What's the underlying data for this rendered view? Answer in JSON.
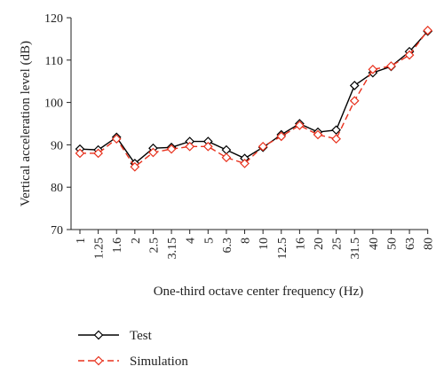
{
  "chart_data": {
    "type": "line",
    "title": "",
    "xlabel": "One-third octave center frequency (Hz)",
    "ylabel": "Vertical acceleration level (dB)",
    "ylim": [
      70,
      120
    ],
    "yticks": [
      "70",
      "80",
      "90",
      "100",
      "110",
      "120"
    ],
    "grid": false,
    "legend_position": "bottom-left",
    "categories": [
      "1",
      "1.25",
      "1.6",
      "2",
      "2.5",
      "3.15",
      "4",
      "5",
      "6.3",
      "8",
      "10",
      "12.5",
      "16",
      "20",
      "25",
      "31.5",
      "40",
      "50",
      "63",
      "80"
    ],
    "series": [
      {
        "name": "Test",
        "color": "#000000",
        "line_style": "solid",
        "marker": "diamond",
        "values": [
          89.0,
          88.8,
          91.8,
          85.6,
          89.2,
          89.4,
          90.8,
          90.8,
          88.8,
          86.8,
          89.4,
          92.4,
          95.0,
          93.0,
          93.5,
          104.0,
          107.0,
          108.5,
          112.0,
          116.8
        ]
      },
      {
        "name": "Simulation",
        "color": "#e8301c",
        "line_style": "dashed",
        "marker": "diamond",
        "values": [
          88.0,
          88.0,
          91.4,
          84.8,
          88.2,
          89.0,
          89.6,
          89.6,
          87.0,
          85.6,
          89.6,
          92.0,
          94.6,
          92.4,
          91.4,
          100.4,
          107.8,
          108.6,
          111.2,
          117.0
        ]
      }
    ]
  }
}
